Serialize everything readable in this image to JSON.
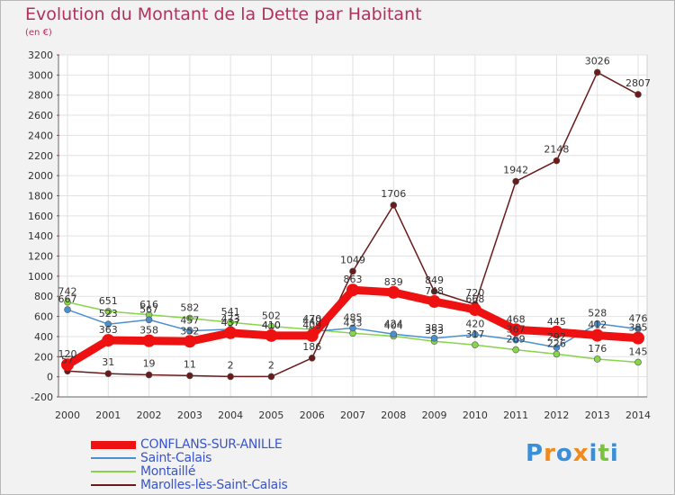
{
  "title": "Evolution du Montant de la Dette par Habitant",
  "subtitle": "(en €)",
  "brand": {
    "letters": [
      "P",
      "r",
      "o",
      "x",
      "i",
      "t",
      "i"
    ],
    "colors": [
      "#3a8fd8",
      "#f08a1c",
      "#3a8fd8",
      "#f08a1c",
      "#3a8fd8",
      "#7cc242",
      "#3a8fd8"
    ]
  },
  "chart_data": {
    "type": "line",
    "x": [
      2000,
      2001,
      2002,
      2003,
      2004,
      2005,
      2006,
      2007,
      2008,
      2009,
      2010,
      2011,
      2012,
      2013,
      2014
    ],
    "ylim": [
      -200,
      3200
    ],
    "yticks": [
      -200,
      0,
      200,
      400,
      600,
      800,
      1000,
      1200,
      1400,
      1600,
      1800,
      2000,
      2200,
      2400,
      2600,
      2800,
      3000,
      3200
    ],
    "grid": true,
    "legend_position": "bottom-left",
    "series": [
      {
        "name": "CONFLANS-SUR-ANILLE",
        "color": "#ee1111",
        "values": [
          120,
          363,
          358,
          352,
          437,
          410,
          409,
          863,
          839,
          748,
          668,
          468,
          445,
          412,
          385
        ]
      },
      {
        "name": "Saint-Calais",
        "color": "#4a90d0",
        "values": [
          667,
          523,
          567,
          457,
          473,
          410,
          449,
          485,
          424,
          383,
          420,
          367,
          292,
          528,
          476
        ]
      },
      {
        "name": "Montaillé",
        "color": "#88d44a",
        "values": [
          742,
          651,
          616,
          582,
          541,
          502,
          470,
          433,
          404,
          353,
          317,
          269,
          226,
          176,
          145
        ]
      },
      {
        "name": "Marolles-lès-Saint-Calais",
        "color": "#6a1a1a",
        "values": [
          57,
          31,
          19,
          11,
          2,
          2,
          186,
          1049,
          1706,
          849,
          720,
          1942,
          2148,
          3026,
          2807
        ]
      }
    ]
  }
}
